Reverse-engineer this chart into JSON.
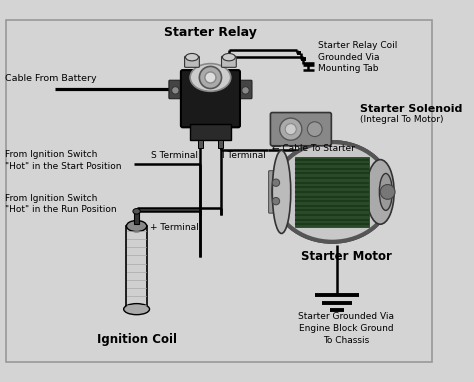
{
  "bg_color": "#d4d4d4",
  "line_color": "#000000",
  "lw": 1.8,
  "labels": {
    "starter_relay": "Starter Relay",
    "starter_relay_coil": "Starter Relay Coil\nGrounded Via\nMounting Tab",
    "cable_from_battery": "Cable From Battery",
    "s_terminal": "S Terminal",
    "i_terminal": "I Terminal",
    "cable_to_starter": "← Cable To Starter",
    "from_ign_start": "From Ignition Switch\n\"Hot\" in the Start Position",
    "from_ign_run": "From Ignition Switch\n\"Hot\" in the Run Position",
    "plus_terminal": "+ Terminal",
    "ignition_coil": "Ignition Coil",
    "starter_solenoid": "Starter Solenoid",
    "integral_to_motor": "(Integral To Motor)",
    "starter_motor": "Starter Motor",
    "grounded_via": "Starter Grounded Via\nEngine Block Ground\nTo Chassis"
  }
}
